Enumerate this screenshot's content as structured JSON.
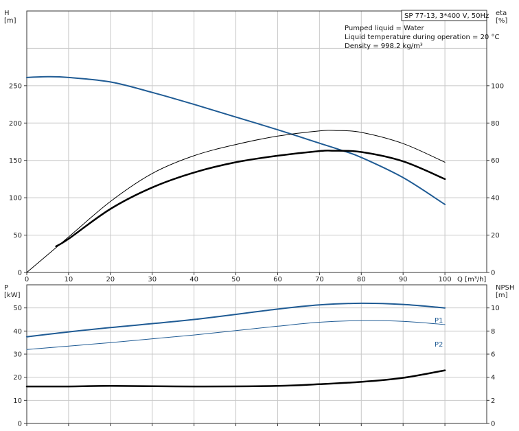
{
  "info_box": {
    "title": "SP 77-13, 3*400 V, 50Hz",
    "lines": [
      "Pumped liquid = Water",
      "Liquid temperature during operation = 20 °C",
      "Density = 998.2 kg/m³"
    ]
  },
  "colors": {
    "blue": "#1f5b94",
    "black": "#000000"
  },
  "chart_data": [
    {
      "type": "line",
      "y_left_label": "H\n[m]",
      "y_right_label": "eta\n[%]",
      "x_label": "Q [m³/h]",
      "x_ticks": [
        0,
        10,
        20,
        30,
        40,
        50,
        60,
        70,
        80,
        90,
        100
      ],
      "y_left_ticks": [
        0,
        50,
        100,
        150,
        200,
        250
      ],
      "y_right_ticks": [
        0,
        20,
        40,
        60,
        80,
        100
      ],
      "xlim": [
        0,
        110
      ],
      "ylim_left": [
        0,
        350
      ],
      "ylim_right": [
        0,
        140
      ],
      "grid": true,
      "series": [
        {
          "axis": "left",
          "color": "blue",
          "width": 2,
          "x": [
            0,
            5,
            10,
            20,
            30,
            40,
            50,
            60,
            70,
            75,
            80,
            90,
            100
          ],
          "y": [
            261,
            262,
            261,
            255,
            241,
            225,
            208,
            191,
            173,
            164,
            154,
            127,
            91
          ]
        },
        {
          "axis": "right",
          "color": "black",
          "width": 1,
          "x": [
            0,
            10,
            20,
            30,
            40,
            50,
            60,
            70,
            74,
            80,
            90,
            100
          ],
          "y": [
            0,
            19,
            38,
            53,
            62.5,
            68.5,
            73,
            75.8,
            76,
            75,
            69,
            59
          ]
        },
        {
          "axis": "right",
          "color": "black",
          "width": 2.5,
          "x": [
            7,
            10,
            20,
            30,
            40,
            50,
            60,
            70,
            73,
            80,
            90,
            100
          ],
          "y": [
            14,
            18,
            34,
            45.5,
            53.5,
            59,
            62.5,
            65,
            65.2,
            64.5,
            59.5,
            50
          ]
        }
      ]
    },
    {
      "type": "line",
      "y_left_label": "P\n[kW]",
      "y_right_label": "NPSH\n[m]",
      "x_ticks": [
        0,
        10,
        20,
        30,
        40,
        50,
        60,
        70,
        80,
        90,
        100
      ],
      "y_left_ticks": [
        0,
        10,
        20,
        30,
        40,
        50
      ],
      "y_right_ticks": [
        0,
        2,
        4,
        6,
        8,
        10
      ],
      "xlim": [
        0,
        110
      ],
      "ylim_left": [
        0,
        60
      ],
      "ylim_right": [
        0,
        12
      ],
      "grid": true,
      "series": [
        {
          "name": "P1",
          "axis": "left",
          "color": "blue",
          "width": 2,
          "x": [
            0,
            7,
            20,
            40,
            60,
            70,
            80,
            90,
            100
          ],
          "y": [
            37.5,
            39,
            41.5,
            45,
            49.5,
            51.3,
            52,
            51.5,
            50
          ]
        },
        {
          "name": "P2",
          "axis": "left",
          "color": "blue",
          "width": 1,
          "x": [
            0,
            20,
            40,
            60,
            70,
            80,
            90,
            100
          ],
          "y": [
            32,
            35,
            38.3,
            42.1,
            43.8,
            44.5,
            44.2,
            42.8
          ]
        },
        {
          "axis": "right",
          "color": "black",
          "width": 2.5,
          "x": [
            0,
            10,
            20,
            40,
            60,
            70,
            80,
            90,
            100
          ],
          "y": [
            3.2,
            3.2,
            3.25,
            3.2,
            3.25,
            3.4,
            3.6,
            3.95,
            4.6
          ]
        }
      ]
    }
  ]
}
